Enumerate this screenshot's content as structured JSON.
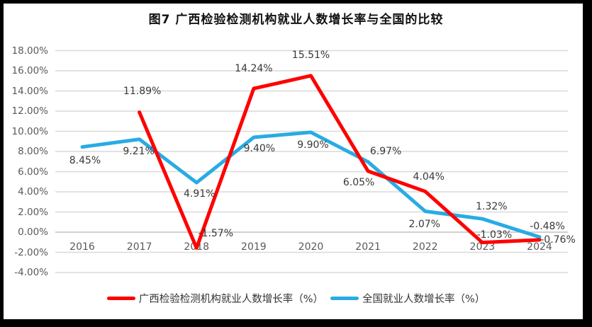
{
  "chart_data": {
    "type": "line",
    "title": "图7 广西检验检测机构就业人数增长率与全国的比较",
    "categories": [
      "2016",
      "2017",
      "2018",
      "2019",
      "2020",
      "2021",
      "2022",
      "2023",
      "2024"
    ],
    "series": [
      {
        "name": "广西检验检测机构就业人数增长率（%）",
        "color": "#FF0000",
        "values": [
          null,
          11.89,
          -1.57,
          14.24,
          15.51,
          6.05,
          4.04,
          -1.03,
          -0.76
        ],
        "labels": [
          "",
          "11.89%",
          "-1.57%",
          "14.24%",
          "15.51%",
          "6.05%",
          "4.04%",
          "-1.03%",
          "-0.76%"
        ],
        "label_offsets": [
          null,
          [
            4,
            -30
          ],
          [
            27,
            -20
          ],
          [
            0,
            -28
          ],
          [
            0,
            -29
          ],
          [
            -13,
            16
          ],
          [
            5,
            -20
          ],
          [
            17,
            -11
          ],
          [
            26,
            0
          ]
        ]
      },
      {
        "name": "全国就业人数增长率（%）",
        "color": "#29ABE3",
        "values": [
          8.45,
          9.21,
          4.91,
          9.4,
          9.9,
          6.97,
          2.07,
          1.32,
          -0.48
        ],
        "labels": [
          "8.45%",
          "9.21%",
          "4.91%",
          "9.40%",
          "9.90%",
          "6.97%",
          "2.07%",
          "1.32%",
          "-0.48%"
        ],
        "label_offsets": [
          [
            4,
            19
          ],
          [
            -1,
            17
          ],
          [
            4,
            16
          ],
          [
            8,
            16
          ],
          [
            3,
            18
          ],
          [
            25,
            -15
          ],
          [
            -1,
            18
          ],
          [
            13,
            -17
          ],
          [
            11,
            -15
          ]
        ]
      }
    ],
    "y_axis": {
      "ticks": [
        "18.00%",
        "16.00%",
        "14.00%",
        "12.00%",
        "10.00%",
        "8.00%",
        "6.00%",
        "4.00%",
        "2.00%",
        "0.00%",
        "-2.00%",
        "-4.00%"
      ],
      "min": -4,
      "max": 18,
      "step": 2
    },
    "grid": true,
    "legend_position": "bottom",
    "colors": {
      "gridline": "#D9D9D9",
      "zero_line": "#C0C0C0",
      "axis_text": "#595959",
      "data_label_text": "#383838"
    }
  }
}
